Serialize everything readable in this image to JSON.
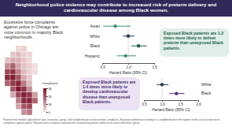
{
  "header": {
    "title": "Neighborhood police violence may contribute to increased risk of preterm delivery and cardiovascular disease among Black women."
  },
  "map": {
    "text": "Excessive force complaints against police in Chicago are more common in majority Black neighborhoods.",
    "legend_title": "Complaints",
    "lim": [
      0,
      30
    ],
    "ticks": [
      0,
      10,
      20,
      30
    ],
    "colors": [
      "#f6e3e3",
      "#7a1024"
    ],
    "values": [
      [
        null,
        null,
        2,
        3,
        null,
        null
      ],
      [
        null,
        4,
        6,
        3,
        2,
        null
      ],
      [
        5,
        8,
        7,
        4,
        2,
        null
      ],
      [
        12,
        18,
        9,
        5,
        3,
        1
      ],
      [
        22,
        25,
        14,
        6,
        3,
        1
      ],
      [
        26,
        28,
        20,
        8,
        4,
        null
      ],
      [
        18,
        24,
        27,
        15,
        6,
        null
      ],
      [
        null,
        20,
        29,
        25,
        12,
        null
      ],
      [
        null,
        8,
        22,
        28,
        24,
        10
      ],
      [
        null,
        null,
        14,
        26,
        27,
        18
      ],
      [
        null,
        null,
        9,
        20,
        22,
        null
      ],
      [
        null,
        null,
        null,
        12,
        15,
        null
      ]
    ]
  },
  "chart_data": [
    {
      "type": "forest",
      "categories": [
        "Asian",
        "White",
        "Black",
        "Hispanic"
      ],
      "values": [
        0.75,
        1.0,
        1.2,
        0.95
      ],
      "lower": [
        0.52,
        0.9,
        1.06,
        0.78
      ],
      "upper": [
        1.05,
        1.12,
        1.36,
        1.15
      ],
      "colors": [
        "#3f8f7a",
        "#263a55",
        "#1f5e46",
        "#3f8f7a"
      ],
      "reference": 1,
      "xlim": [
        0.5,
        1.5
      ],
      "xticks": [
        0.5,
        {
          "value": 1,
          "label": "1.0"
        },
        1.5
      ],
      "xlabel": "Hazard Ratio (95% CI)",
      "annotation": "Exposed Black patients are 1.2 times more likely to deliver preterm than unexposed Black patients."
    },
    {
      "type": "forest",
      "categories": [
        "White",
        "Black"
      ],
      "values": [
        1.0,
        1.4
      ],
      "lower": [
        0.85,
        1.2
      ],
      "upper": [
        1.18,
        1.62
      ],
      "colors": [
        "#263a55",
        "#5b2c83"
      ],
      "reference": 1,
      "xlim": [
        0.5,
        2
      ],
      "xticks": [
        0.5,
        {
          "value": 1,
          "label": "1.0"
        },
        1.5,
        {
          "value": 2,
          "label": "2.0"
        }
      ],
      "xlabel": "Hazard Ratio (95% CI)",
      "annotation": "Exposed Black patients are 1.4 times more likely to develop cardiovascular disease than unexposed Black patients."
    }
  ],
  "footnote": "Patient-level models adjusted for age, insurance, parity, and neighborhood socioeconomic conditions. Exposure defined as residing in a neighborhood in the highest tertile of excessive force complaints against police. Hazard ratios compare exposed with unexposed patients within each racial and ethnic group."
}
